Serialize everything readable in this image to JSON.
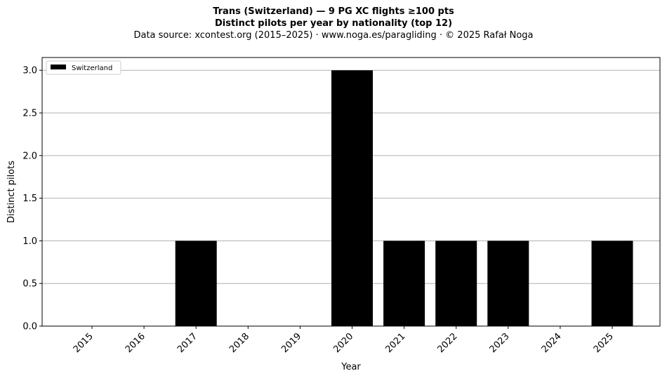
{
  "chart_data": {
    "type": "bar",
    "title": "Trans (Switzerland)  —  9 PG XC flights ≥100 pts",
    "subtitle": "Distinct pilots per year by nationality (top 12)",
    "source_note": "Data source: xcontest.org (2015–2025)  ·  www.noga.es/paragliding  ·  © 2025 Rafał Noga",
    "xlabel": "Year",
    "ylabel": "Distinct pilots",
    "categories": [
      "2015",
      "2016",
      "2017",
      "2018",
      "2019",
      "2020",
      "2021",
      "2022",
      "2023",
      "2024",
      "2025"
    ],
    "series": [
      {
        "name": "Switzerland",
        "color": "#000000",
        "values": [
          0,
          0,
          1,
          0,
          0,
          3,
          1,
          1,
          1,
          0,
          1
        ]
      }
    ],
    "ylim": [
      0,
      3.15
    ],
    "yticks": [
      "0.0",
      "0.5",
      "1.0",
      "1.5",
      "2.0",
      "2.5",
      "3.0"
    ],
    "grid": "y",
    "legend_position": "top-left"
  }
}
